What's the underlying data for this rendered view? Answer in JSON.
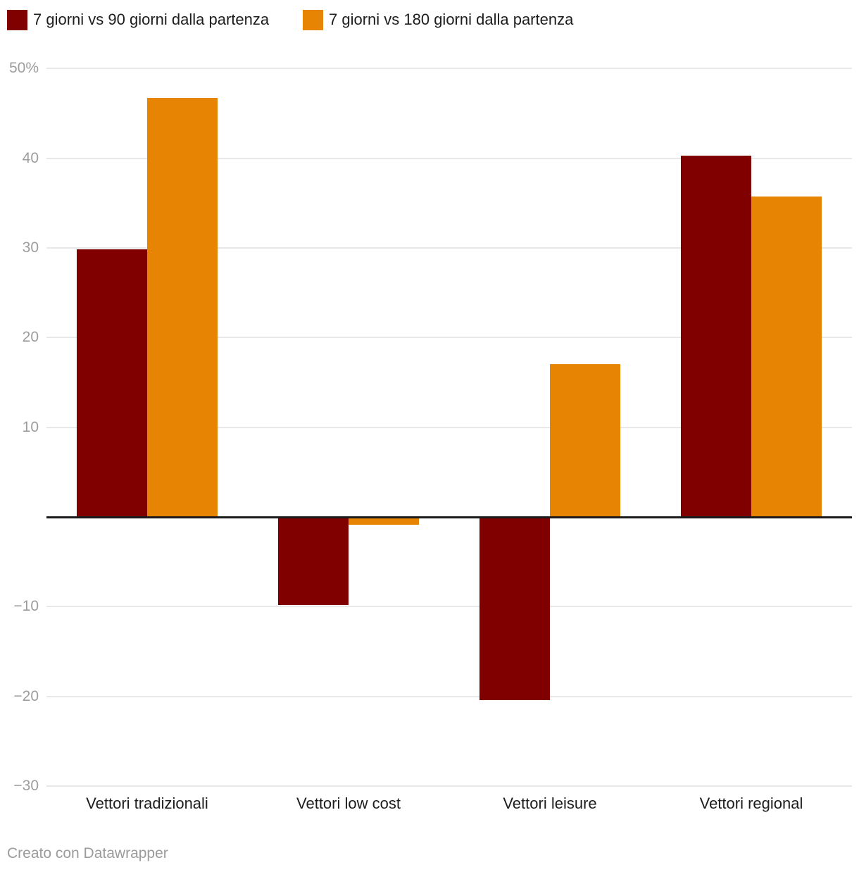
{
  "legend": {
    "items": [
      {
        "label": "7 giorni vs 90 giorni dalla partenza",
        "color": "#800000"
      },
      {
        "label": "7 giorni vs 180 giorni dalla partenza",
        "color": "#e88404"
      }
    ]
  },
  "chart_data": {
    "type": "bar",
    "title": "",
    "xlabel": "",
    "ylabel": "",
    "categories": [
      "Vettori tradizionali",
      "Vettori low cost",
      "Vettori leisure",
      "Vettori regional"
    ],
    "series": [
      {
        "name": "7 giorni vs 90 giorni dalla partenza",
        "color": "#800000",
        "values": [
          29.8,
          -9.8,
          -20.4,
          40.3
        ]
      },
      {
        "name": "7 giorni vs 180 giorni dalla partenza",
        "color": "#e88404",
        "values": [
          46.7,
          -0.9,
          17.0,
          35.7
        ]
      }
    ],
    "ylim": [
      -30,
      50
    ],
    "baseline": 0,
    "grid": true,
    "legend_position": "top",
    "yticks": [
      {
        "value": 50,
        "label": "50%"
      },
      {
        "value": 40,
        "label": "40"
      },
      {
        "value": 30,
        "label": "30"
      },
      {
        "value": 20,
        "label": "20"
      },
      {
        "value": 10,
        "label": "10"
      },
      {
        "value": -10,
        "label": "−10"
      },
      {
        "value": -20,
        "label": "−20"
      },
      {
        "value": -30,
        "label": "−30"
      }
    ]
  },
  "footer": {
    "credit": "Creato con Datawrapper"
  }
}
